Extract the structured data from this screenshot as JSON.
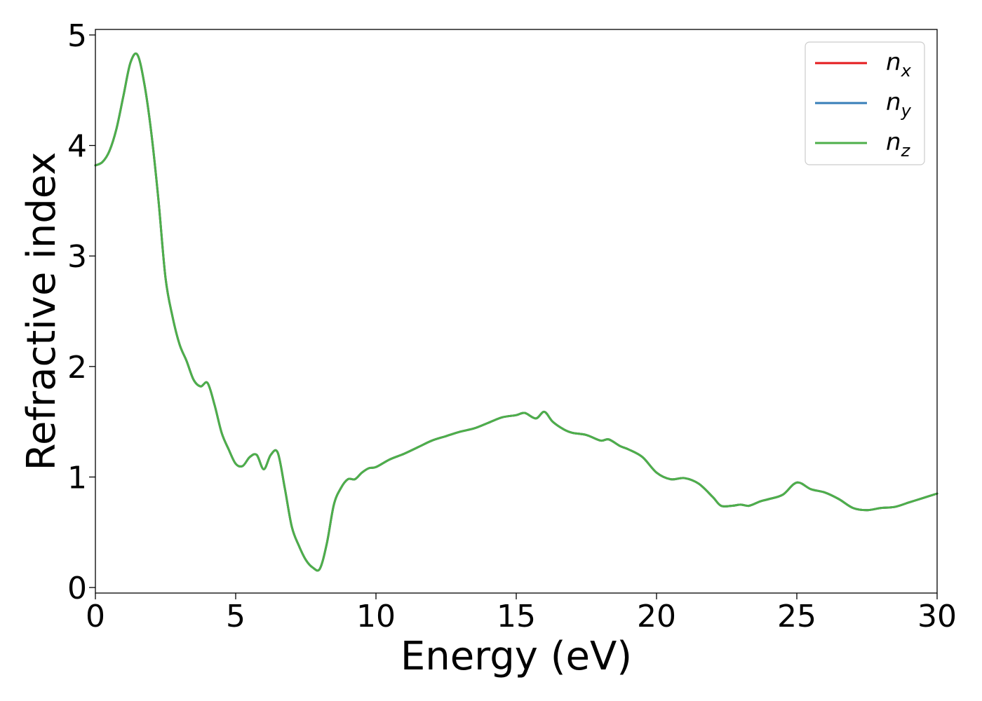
{
  "chart_data": {
    "type": "line",
    "xlabel": "Energy (eV)",
    "ylabel": "Refractive index",
    "xlim": [
      0,
      30
    ],
    "ylim": [
      -0.05,
      5.05
    ],
    "xticks": [
      0,
      5,
      10,
      15,
      20,
      25,
      30
    ],
    "yticks": [
      0,
      1,
      2,
      3,
      4,
      5
    ],
    "grid": false,
    "legend_position": "top-right",
    "x": [
      0,
      0.25,
      0.5,
      0.75,
      1.0,
      1.25,
      1.5,
      1.75,
      2.0,
      2.25,
      2.5,
      2.75,
      3.0,
      3.25,
      3.5,
      3.75,
      4.0,
      4.25,
      4.5,
      4.75,
      5.0,
      5.25,
      5.5,
      5.75,
      6.0,
      6.25,
      6.5,
      6.75,
      7.0,
      7.25,
      7.5,
      7.75,
      8.0,
      8.25,
      8.5,
      8.75,
      9.0,
      9.25,
      9.5,
      9.75,
      10.0,
      10.5,
      11.0,
      11.5,
      12.0,
      12.5,
      13.0,
      13.5,
      14.0,
      14.5,
      15.0,
      15.3,
      15.7,
      16.0,
      16.3,
      16.7,
      17.0,
      17.5,
      18.0,
      18.3,
      18.7,
      19.0,
      19.5,
      20.0,
      20.5,
      21.0,
      21.5,
      22.0,
      22.3,
      22.7,
      23.0,
      23.3,
      23.7,
      24.0,
      24.5,
      25.0,
      25.5,
      26.0,
      26.5,
      27.0,
      27.5,
      28.0,
      28.5,
      29.0,
      29.5,
      30.0
    ],
    "series": [
      {
        "name": "n_x",
        "color": "#e41a1c",
        "values": [
          3.82,
          3.85,
          3.95,
          4.15,
          4.45,
          4.75,
          4.82,
          4.55,
          4.1,
          3.5,
          2.8,
          2.45,
          2.2,
          2.05,
          1.88,
          1.82,
          1.85,
          1.65,
          1.4,
          1.25,
          1.12,
          1.1,
          1.18,
          1.2,
          1.07,
          1.2,
          1.22,
          0.9,
          0.55,
          0.38,
          0.25,
          0.18,
          0.17,
          0.4,
          0.75,
          0.9,
          0.98,
          0.98,
          1.04,
          1.08,
          1.09,
          1.16,
          1.21,
          1.27,
          1.33,
          1.37,
          1.41,
          1.44,
          1.49,
          1.54,
          1.56,
          1.58,
          1.53,
          1.59,
          1.5,
          1.43,
          1.4,
          1.38,
          1.33,
          1.34,
          1.28,
          1.25,
          1.18,
          1.04,
          0.98,
          0.99,
          0.94,
          0.82,
          0.74,
          0.74,
          0.75,
          0.74,
          0.78,
          0.8,
          0.84,
          0.95,
          0.89,
          0.86,
          0.8,
          0.72,
          0.7,
          0.72,
          0.73,
          0.77,
          0.81,
          0.85
        ]
      },
      {
        "name": "n_y",
        "color": "#377eb8",
        "values": [
          3.82,
          3.85,
          3.95,
          4.15,
          4.45,
          4.75,
          4.82,
          4.55,
          4.1,
          3.5,
          2.8,
          2.45,
          2.2,
          2.05,
          1.88,
          1.82,
          1.85,
          1.65,
          1.4,
          1.25,
          1.12,
          1.1,
          1.18,
          1.2,
          1.07,
          1.2,
          1.22,
          0.9,
          0.55,
          0.38,
          0.25,
          0.18,
          0.17,
          0.4,
          0.75,
          0.9,
          0.98,
          0.98,
          1.04,
          1.08,
          1.09,
          1.16,
          1.21,
          1.27,
          1.33,
          1.37,
          1.41,
          1.44,
          1.49,
          1.54,
          1.56,
          1.58,
          1.53,
          1.59,
          1.5,
          1.43,
          1.4,
          1.38,
          1.33,
          1.34,
          1.28,
          1.25,
          1.18,
          1.04,
          0.98,
          0.99,
          0.94,
          0.82,
          0.74,
          0.74,
          0.75,
          0.74,
          0.78,
          0.8,
          0.84,
          0.95,
          0.89,
          0.86,
          0.8,
          0.72,
          0.7,
          0.72,
          0.73,
          0.77,
          0.81,
          0.85
        ]
      },
      {
        "name": "n_z",
        "color": "#4daf4a",
        "values": [
          3.82,
          3.85,
          3.95,
          4.15,
          4.45,
          4.75,
          4.82,
          4.55,
          4.1,
          3.5,
          2.8,
          2.45,
          2.2,
          2.05,
          1.88,
          1.82,
          1.85,
          1.65,
          1.4,
          1.25,
          1.12,
          1.1,
          1.18,
          1.2,
          1.07,
          1.2,
          1.22,
          0.9,
          0.55,
          0.38,
          0.25,
          0.18,
          0.17,
          0.4,
          0.75,
          0.9,
          0.98,
          0.98,
          1.04,
          1.08,
          1.09,
          1.16,
          1.21,
          1.27,
          1.33,
          1.37,
          1.41,
          1.44,
          1.49,
          1.54,
          1.56,
          1.58,
          1.53,
          1.59,
          1.5,
          1.43,
          1.4,
          1.38,
          1.33,
          1.34,
          1.28,
          1.25,
          1.18,
          1.04,
          0.98,
          0.99,
          0.94,
          0.82,
          0.74,
          0.74,
          0.75,
          0.74,
          0.78,
          0.8,
          0.84,
          0.95,
          0.89,
          0.86,
          0.8,
          0.72,
          0.7,
          0.72,
          0.73,
          0.77,
          0.81,
          0.85
        ]
      }
    ],
    "legend": [
      {
        "base": "n",
        "sub": "x"
      },
      {
        "base": "n",
        "sub": "y"
      },
      {
        "base": "n",
        "sub": "z"
      }
    ]
  }
}
